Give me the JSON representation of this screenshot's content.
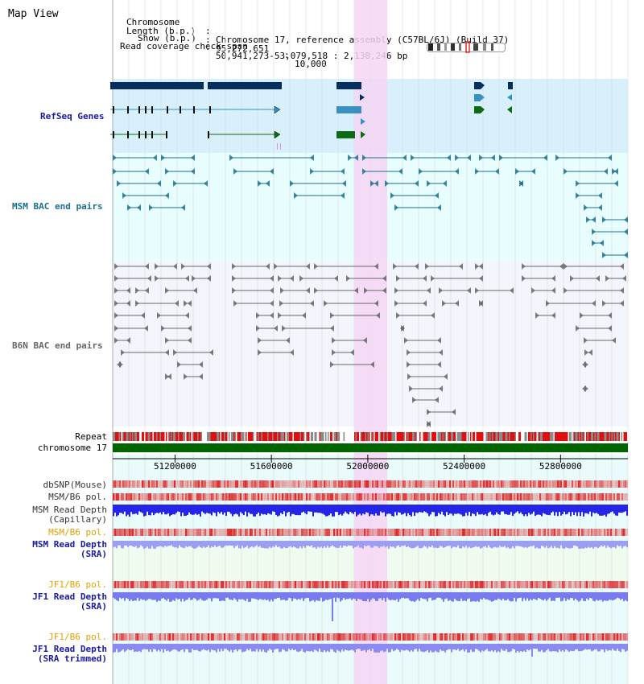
{
  "title": "Map View",
  "info": [
    {
      "key": "Chromosome",
      "value": "Chromosome 17, reference assembly (C57BL/6J) (Build 37)"
    },
    {
      "key": "Length (b.p.)",
      "value": "95,272,651"
    },
    {
      "key": "Show (b.p.)",
      "value": "50,941,273-53,079,518 : 2,138,246 bp"
    },
    {
      "key": "Read coverage check span",
      "value": "10,000"
    }
  ],
  "view": {
    "start": 50941273,
    "end": 53079518
  },
  "colors": {
    "refseq_bg": "#d8f0fb",
    "msm_bac_bg": "#e8fdfd",
    "b6n_bac_bg": "#f2f5fb",
    "highlight": "#f6d6f5",
    "refseq_dark": "#062f5f",
    "refseq_mid": "#3a90c0",
    "refseq_green": "#0f6a15",
    "msm_feature": "#1b6f8e",
    "b6n_feature": "#666666",
    "chromosome": "#006400",
    "repeat_red": "#e01010",
    "depth_blue": "#2525e8",
    "depth_light": "#7a7aef"
  },
  "tracks": {
    "refseq": {
      "label": "RefSeq Genes"
    },
    "msm_bac": {
      "label": "MSM BAC end pairs"
    },
    "b6n_bac": {
      "label": "B6N BAC end pairs"
    },
    "repeat": {
      "label": "Repeat"
    },
    "chromosome": {
      "label": "chromosome 17"
    },
    "axis_ticks": [
      51200000,
      51600000,
      52000000,
      52400000,
      52800000
    ],
    "dbsnp": {
      "label": "dbSNP(Mouse)"
    },
    "msm_b6_pol_1": {
      "label": "MSM/B6 pol."
    },
    "msm_depth_cap": {
      "label": "MSM Read Depth\n(Capillary)"
    },
    "msm_b6_pol_2": {
      "label": "MSM/B6 pol."
    },
    "msm_depth_sra": {
      "label": "MSM Read Depth\n(SRA)"
    },
    "jf1_b6_pol_1": {
      "label": "JF1/B6 pol."
    },
    "jf1_depth_sra": {
      "label": "JF1 Read Depth\n(SRA)"
    },
    "jf1_b6_pol_2": {
      "label": "JF1/B6 pol."
    },
    "jf1_depth_trim": {
      "label": "JF1 Read Depth\n(SRA trimmed)"
    }
  }
}
